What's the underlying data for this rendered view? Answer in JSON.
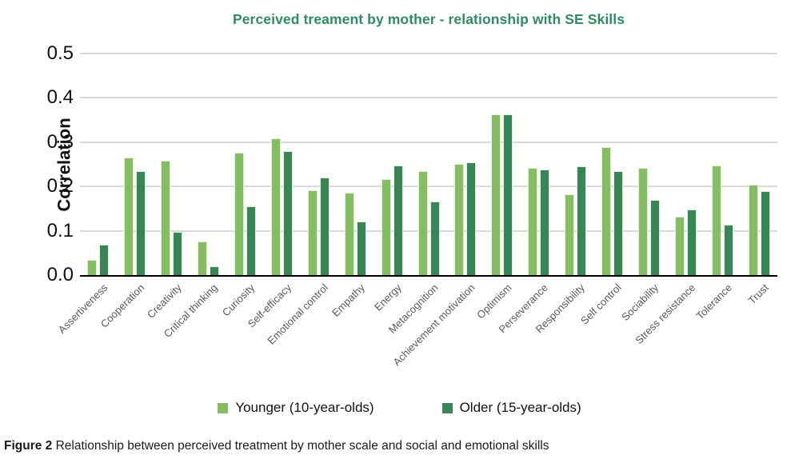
{
  "chart_data": {
    "type": "bar",
    "title": "Perceived treament by mother - relationship with SE Skills",
    "ylabel": "Correlation",
    "xlabel": "",
    "ylim": [
      0,
      0.5
    ],
    "yticks": [
      0.5,
      0.4,
      0.3,
      0.2,
      0.1,
      0.0
    ],
    "grid": true,
    "legend_position": "bottom",
    "categories": [
      "Assertiveness",
      "Cooperation",
      "Creativity",
      "Critical thinking",
      "Curiosity",
      "Self-efficacy",
      "Emotional control",
      "Empathy",
      "Energy",
      "Metacognition",
      "Achievement motivation",
      "Optimism",
      "Perseverance",
      "Responsibility",
      "Self control",
      "Sociability",
      "Stress resistance",
      "Tolerance",
      "Trust"
    ],
    "series": [
      {
        "name": "Younger (10-year-olds)",
        "color": "#85BD63",
        "values": [
          0.035,
          0.265,
          0.258,
          0.075,
          0.276,
          0.308,
          0.192,
          0.186,
          0.217,
          0.235,
          0.251,
          0.362,
          0.242,
          0.183,
          0.288,
          0.242,
          0.132,
          0.248,
          0.204
        ]
      },
      {
        "name": "Older (15-year-olds)",
        "color": "#388557",
        "values": [
          0.069,
          0.235,
          0.098,
          0.02,
          0.155,
          0.279,
          0.221,
          0.121,
          0.248,
          0.166,
          0.255,
          0.362,
          0.238,
          0.245,
          0.235,
          0.17,
          0.148,
          0.113,
          0.19
        ]
      }
    ]
  },
  "caption": {
    "label": "Figure 2",
    "text": "Relationship between perceived treatment by mother scale and social and emotional skills"
  },
  "colors": {
    "title": "#2F8B62",
    "gridline": "#D9D9D9",
    "axis_line": "#000000",
    "tick_label": "#111111",
    "category_label": "#595959",
    "background": "#FFFFFF"
  }
}
